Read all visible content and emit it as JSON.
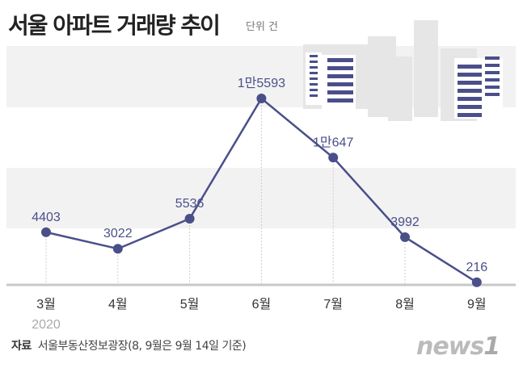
{
  "title": "서울 아파트 거래량 추이",
  "unit": "단위 건",
  "source_label": "자료",
  "source_text": "서울부동산정보광장(8, 9월은 9월 14일 기준)",
  "logo_text": "news1",
  "colors": {
    "line": "#4a4f8a",
    "band": "#f2f2f2",
    "axis": "#c8c8c8"
  },
  "chart_data": {
    "type": "line",
    "title": "서울 아파트 거래량 추이",
    "ylabel": "단위 건",
    "categories": [
      "3월",
      "4월",
      "5월",
      "6월",
      "7월",
      "8월",
      "9월"
    ],
    "year_label": "2020",
    "values": [
      4403,
      3022,
      5536,
      15593,
      10647,
      3992,
      216
    ],
    "value_labels": [
      "4403",
      "3022",
      "5536",
      "1만5593",
      "1만647",
      "3992",
      "216"
    ],
    "ylim": [
      0,
      20000
    ],
    "grid": "alternating bands"
  }
}
